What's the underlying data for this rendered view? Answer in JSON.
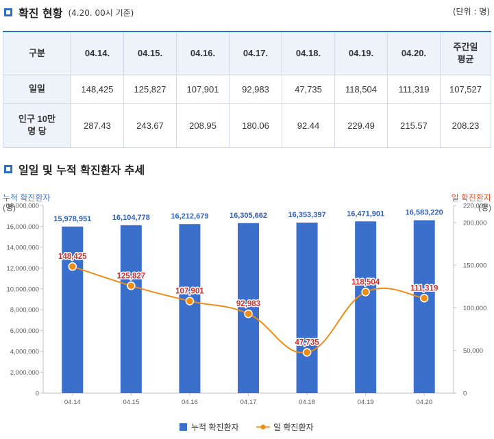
{
  "header": {
    "title": "확진 현황",
    "subtitle": "(4.20. 00시 기준)",
    "unit": "(단위 : 명)"
  },
  "table": {
    "columns": [
      "구분",
      "04.14.",
      "04.15.",
      "04.16.",
      "04.17.",
      "04.18.",
      "04.19.",
      "04.20.",
      "주간일 평균"
    ],
    "rows": [
      {
        "label": "일일",
        "values": [
          "148,425",
          "125,827",
          "107,901",
          "92,983",
          "47,735",
          "118,504",
          "111,319",
          "107,527"
        ]
      },
      {
        "label": "인구 10만 명 당",
        "values": [
          "287.43",
          "243.67",
          "208.95",
          "180.06",
          "92.44",
          "229.49",
          "215.57",
          "208.23"
        ]
      }
    ]
  },
  "trend_section": {
    "title": "일일 및 누적 확진환자 추세"
  },
  "colors": {
    "accent": "#2b6fc6",
    "bar": "#3a6fcb",
    "line": "#ef8c16",
    "bar_label": "#2f5fb5",
    "line_label": "#c8302c",
    "left_axis_title": "#4a78c8",
    "right_axis_title": "#e0502c"
  },
  "chart_data": {
    "type": "bar",
    "categories": [
      "04.14",
      "04.15",
      "04.16",
      "04.17",
      "04.18",
      "04.19",
      "04.20"
    ],
    "left_axis": {
      "title": "누적 확진환자",
      "unit": "(명)",
      "ylim": [
        0,
        18000000
      ],
      "ticks": [
        "0",
        "2,000,000",
        "4,000,000",
        "6,000,000",
        "8,000,000",
        "10,000,000",
        "12,000,000",
        "14,000,000",
        "16,000,000",
        "18,000,000"
      ]
    },
    "right_axis": {
      "title": "일 확진환자",
      "unit": "(명)",
      "ylim": [
        0,
        220000
      ],
      "ticks": [
        "0",
        "50,000",
        "100,000",
        "150,000",
        "200,000",
        "220,000"
      ]
    },
    "series": [
      {
        "name": "누적 확진환자",
        "type": "bar",
        "axis": "left",
        "values": [
          15978951,
          16104778,
          16212679,
          16305662,
          16353397,
          16471901,
          16583220
        ],
        "labels": [
          "15,978,951",
          "16,104,778",
          "16,212,679",
          "16,305,662",
          "16,353,397",
          "16,471,901",
          "16,583,220"
        ]
      },
      {
        "name": "일 확진환자",
        "type": "line",
        "axis": "right",
        "values": [
          148425,
          125827,
          107901,
          92983,
          47735,
          118504,
          111319
        ],
        "labels": [
          "148,425",
          "125,827",
          "107,901",
          "92,983",
          "47,735",
          "118,504",
          "111,319"
        ]
      }
    ],
    "legend": "bottom",
    "grid": false
  }
}
